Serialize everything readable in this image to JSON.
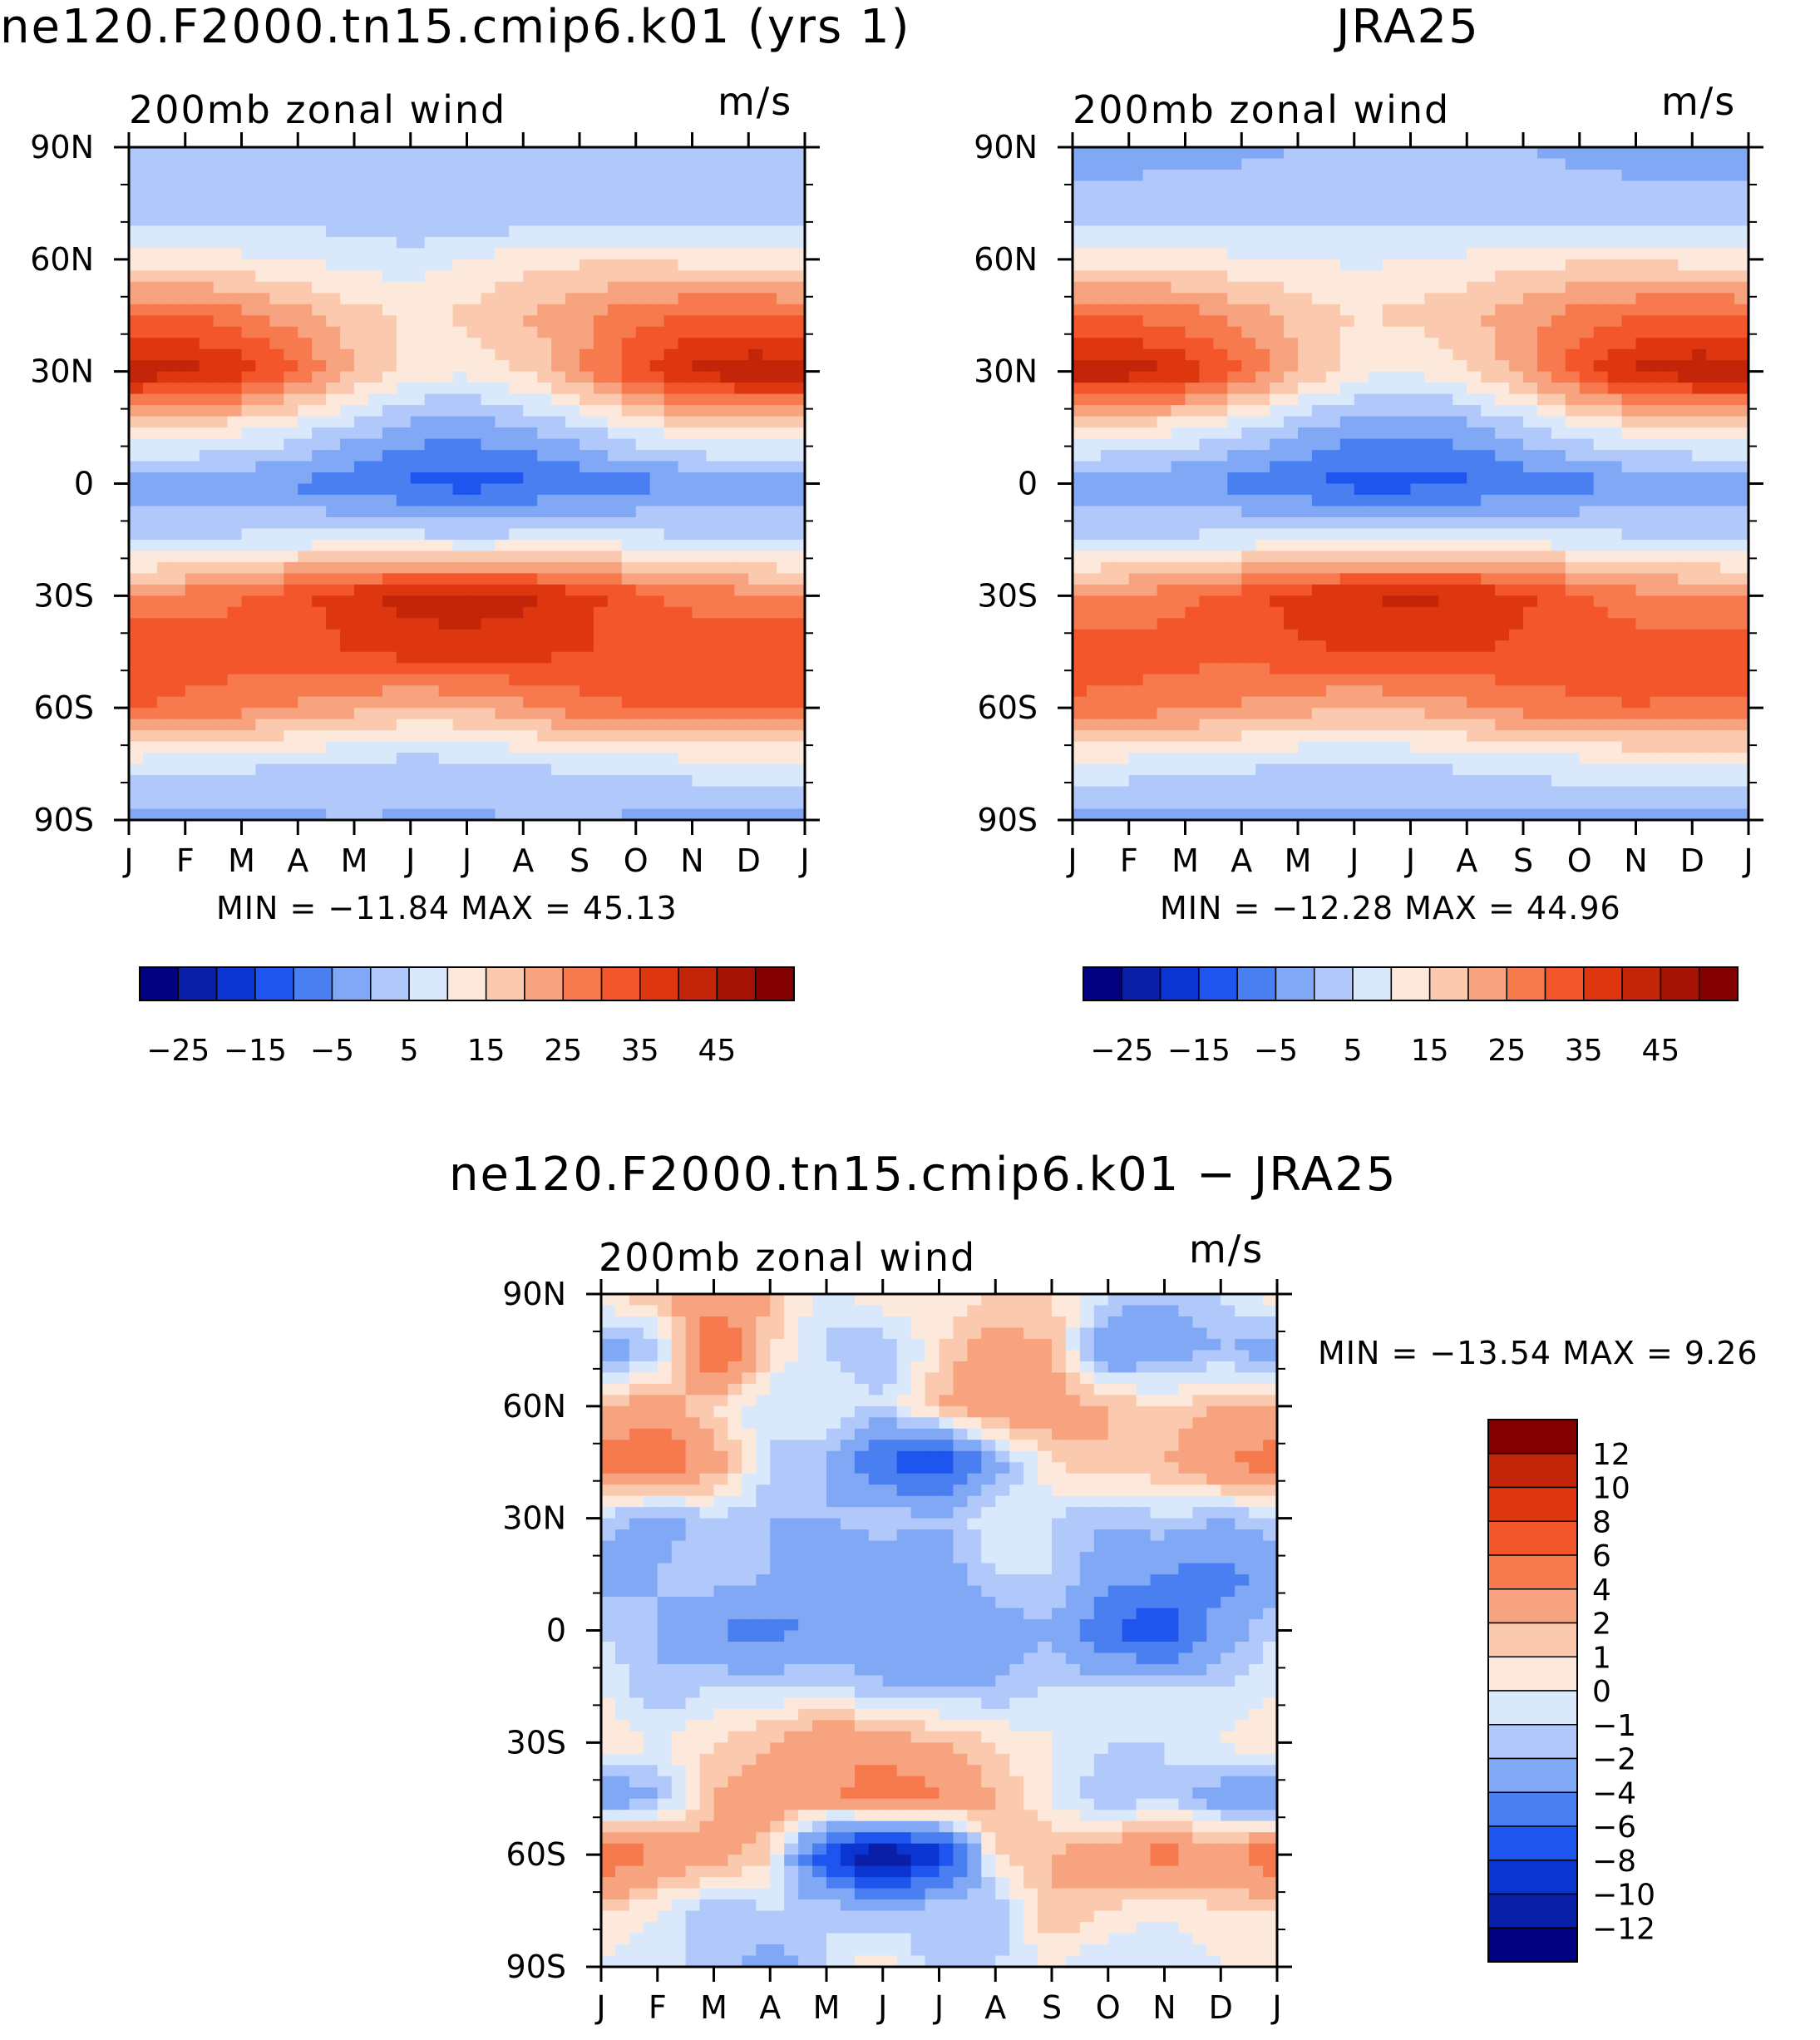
{
  "chart_data": [
    {
      "type": "heatmap",
      "title": "ne120.F2000.tn15.cmip6.k01 (yrs 1)",
      "subtitle": "200mb zonal wind",
      "units": "m/s",
      "x_ticks": [
        "J",
        "F",
        "M",
        "A",
        "M",
        "J",
        "J",
        "A",
        "S",
        "O",
        "N",
        "D",
        "J"
      ],
      "y_ticks": [
        "90N",
        "60N",
        "30N",
        "0",
        "30S",
        "60S",
        "90S"
      ],
      "stats": "MIN = −11.84 MAX =    45.13",
      "colorbar_labels": [
        "−25",
        "−15",
        "−5",
        "5",
        "15",
        "25",
        "35",
        "45"
      ],
      "colorbar_levels": [
        -30,
        -25,
        -20,
        -15,
        -10,
        -5,
        0,
        5,
        10,
        15,
        20,
        25,
        30,
        35,
        40,
        45,
        50
      ],
      "month_index": [
        0,
        1,
        2,
        3,
        4,
        5,
        6,
        7,
        8,
        9,
        10,
        11
      ],
      "lat_deg": [
        90,
        70,
        60,
        45,
        30,
        15,
        0,
        -15,
        -30,
        -45,
        -60,
        -75,
        -90
      ],
      "values": [
        [
          0,
          1,
          2,
          1,
          0,
          1,
          0,
          1,
          1,
          2,
          1,
          0
        ],
        [
          4,
          4,
          5,
          4,
          3,
          2,
          1,
          3,
          4,
          5,
          4,
          4
        ],
        [
          12,
          12,
          11,
          10,
          8,
          7,
          10,
          13,
          14,
          14,
          13,
          12
        ],
        [
          30,
          30,
          27,
          22,
          17,
          14,
          16,
          20,
          24,
          28,
          31,
          31
        ],
        [
          44,
          42,
          38,
          30,
          20,
          13,
          11,
          15,
          24,
          34,
          41,
          44
        ],
        [
          15,
          14,
          12,
          8,
          3,
          -2,
          -3,
          0,
          4,
          10,
          14,
          15
        ],
        [
          -2,
          -3,
          -4,
          -6,
          -9,
          -11,
          -12,
          -11,
          -9,
          -7,
          -5,
          -3
        ],
        [
          3,
          4,
          6,
          7,
          8,
          7,
          6,
          7,
          8,
          7,
          5,
          4
        ],
        [
          26,
          27,
          30,
          34,
          38,
          42,
          43,
          41,
          37,
          32,
          28,
          27
        ],
        [
          34,
          33,
          32,
          33,
          35,
          37,
          38,
          37,
          35,
          34,
          34,
          34
        ],
        [
          30,
          29,
          27,
          24,
          22,
          19,
          20,
          24,
          28,
          30,
          31,
          30
        ],
        [
          8,
          7,
          6,
          5,
          4,
          3,
          4,
          5,
          6,
          7,
          8,
          8
        ],
        [
          -2,
          -2,
          -1,
          -1,
          0,
          -1,
          -1,
          0,
          0,
          -1,
          -2,
          -2
        ]
      ]
    },
    {
      "type": "heatmap",
      "title": "JRA25",
      "subtitle": "200mb zonal wind",
      "units": "m/s",
      "x_ticks": [
        "J",
        "F",
        "M",
        "A",
        "M",
        "J",
        "J",
        "A",
        "S",
        "O",
        "N",
        "D",
        "J"
      ],
      "y_ticks": [
        "90N",
        "60N",
        "30N",
        "0",
        "30S",
        "60S",
        "90S"
      ],
      "stats": "MIN = −12.28 MAX =    44.96",
      "colorbar_labels": [
        "−25",
        "−15",
        "−5",
        "5",
        "15",
        "25",
        "35",
        "45"
      ],
      "colorbar_levels": [
        -30,
        -25,
        -20,
        -15,
        -10,
        -5,
        0,
        5,
        10,
        15,
        20,
        25,
        30,
        35,
        40,
        45,
        50
      ],
      "month_index": [
        0,
        1,
        2,
        3,
        4,
        5,
        6,
        7,
        8,
        9,
        10,
        11
      ],
      "lat_deg": [
        90,
        70,
        60,
        45,
        30,
        15,
        0,
        -15,
        -30,
        -45,
        -60,
        -75,
        -90
      ],
      "values": [
        [
          -2,
          -2,
          -1,
          -1,
          0,
          1,
          1,
          1,
          0,
          -1,
          -2,
          -2
        ],
        [
          3,
          3,
          3,
          3,
          4,
          4,
          4,
          4,
          3,
          3,
          3,
          3
        ],
        [
          13,
          13,
          12,
          11,
          10,
          9,
          10,
          11,
          13,
          14,
          14,
          13
        ],
        [
          30,
          29,
          27,
          23,
          18,
          15,
          16,
          19,
          23,
          27,
          30,
          31
        ],
        [
          44,
          43,
          39,
          31,
          20,
          12,
          10,
          14,
          23,
          33,
          41,
          44
        ],
        [
          14,
          13,
          11,
          6,
          1,
          -3,
          -4,
          -2,
          3,
          9,
          13,
          14
        ],
        [
          -3,
          -4,
          -5,
          -7,
          -10,
          -12,
          -12,
          -11,
          -9,
          -7,
          -5,
          -4
        ],
        [
          4,
          5,
          6,
          7,
          8,
          8,
          7,
          8,
          8,
          7,
          6,
          5
        ],
        [
          25,
          26,
          29,
          33,
          37,
          40,
          41,
          40,
          36,
          31,
          27,
          26
        ],
        [
          33,
          33,
          32,
          32,
          34,
          35,
          36,
          35,
          34,
          33,
          33,
          33
        ],
        [
          29,
          28,
          26,
          24,
          22,
          20,
          21,
          24,
          27,
          29,
          30,
          29
        ],
        [
          9,
          8,
          7,
          6,
          5,
          4,
          5,
          6,
          7,
          8,
          9,
          9
        ],
        [
          -2,
          -2,
          -2,
          -1,
          -1,
          -1,
          -1,
          -1,
          -1,
          -1,
          -2,
          -2
        ]
      ]
    },
    {
      "type": "heatmap",
      "title": "ne120.F2000.tn15.cmip6.k01 − JRA25",
      "subtitle": "200mb zonal wind",
      "units": "m/s",
      "x_ticks": [
        "J",
        "F",
        "M",
        "A",
        "M",
        "J",
        "J",
        "A",
        "S",
        "O",
        "N",
        "D",
        "J"
      ],
      "y_ticks": [
        "90N",
        "60N",
        "30N",
        "0",
        "30S",
        "60S",
        "90S"
      ],
      "stats": "MIN = −13.54 MAX =     9.26",
      "colorbar_labels": [
        "12",
        "10",
        "8",
        "6",
        "4",
        "2",
        "1",
        "0",
        "−1",
        "−2",
        "−4",
        "−6",
        "−8",
        "−10",
        "−12"
      ],
      "colorbar_levels": [
        -14,
        -12,
        -10,
        -8,
        -6,
        -4,
        -2,
        -1,
        0,
        1,
        2,
        4,
        6,
        8,
        10,
        12,
        14
      ],
      "month_index": [
        0,
        1,
        2,
        3,
        4,
        5,
        6,
        7,
        8,
        9,
        10,
        11
      ],
      "lat_deg": [
        90,
        75,
        60,
        45,
        30,
        15,
        0,
        -15,
        -30,
        -45,
        -60,
        -75,
        -90
      ],
      "values": [
        [
          1,
          2,
          3,
          2,
          -1,
          1,
          0,
          1,
          1,
          -1,
          -2,
          -1
        ],
        [
          -3,
          -2,
          7,
          1,
          -1,
          -2,
          1,
          3,
          2,
          -4,
          -3,
          -2
        ],
        [
          2,
          3,
          1,
          -1,
          0,
          -1,
          2,
          4,
          3,
          2,
          1,
          2
        ],
        [
          5,
          6,
          3,
          -1,
          -2,
          -6,
          -8,
          -3,
          1,
          2,
          2,
          4
        ],
        [
          -1,
          -3,
          -1,
          -2,
          -2,
          -1,
          -2,
          0,
          -1,
          -2,
          -1,
          -2
        ],
        [
          -3,
          -2,
          -1,
          -2,
          -4,
          -4,
          -3,
          -1,
          -1,
          -3,
          -4,
          -5
        ],
        [
          -1,
          -2,
          -4,
          -5,
          -3,
          -3,
          -3,
          -3,
          -2,
          -6,
          -8,
          -3
        ],
        [
          0,
          -2,
          -1,
          -1,
          -1,
          -2,
          -2,
          -2,
          -1,
          -1,
          -1,
          -1
        ],
        [
          1,
          0,
          1,
          2,
          4,
          3,
          2,
          1,
          0,
          -1,
          -1,
          0
        ],
        [
          -4,
          -2,
          2,
          3,
          3,
          6,
          4,
          2,
          0,
          -2,
          -1,
          -3
        ],
        [
          6,
          4,
          3,
          1,
          -8,
          -13,
          -9,
          1,
          2,
          3,
          5,
          3
        ],
        [
          1,
          0,
          -2,
          -1,
          -1,
          -2,
          -1,
          -2,
          2,
          1,
          0,
          1
        ],
        [
          0,
          -1,
          -1,
          -3,
          -1,
          1,
          -2,
          -1,
          0,
          -1,
          -1,
          0
        ]
      ]
    }
  ],
  "colors": {
    "main_scale": [
      "#000080",
      "#0a1fa8",
      "#0a35d0",
      "#1e55ee",
      "#4a7ff2",
      "#80a8f5",
      "#b0c8fa",
      "#d9e9fb",
      "#fde9dc",
      "#fbc9ad",
      "#f8a37f",
      "#f67a4e",
      "#f2562a",
      "#de3710",
      "#c22508",
      "#a51304",
      "#830000"
    ],
    "diff_scale": [
      "#000080",
      "#0a1fa8",
      "#0a35d0",
      "#1e55ee",
      "#4a7ff2",
      "#80a8f5",
      "#b0c8fa",
      "#d9e9fb",
      "#fde9dc",
      "#fbc9ad",
      "#f8a37f",
      "#f67a4e",
      "#f2562a",
      "#de3710",
      "#c22508",
      "#830000"
    ]
  }
}
